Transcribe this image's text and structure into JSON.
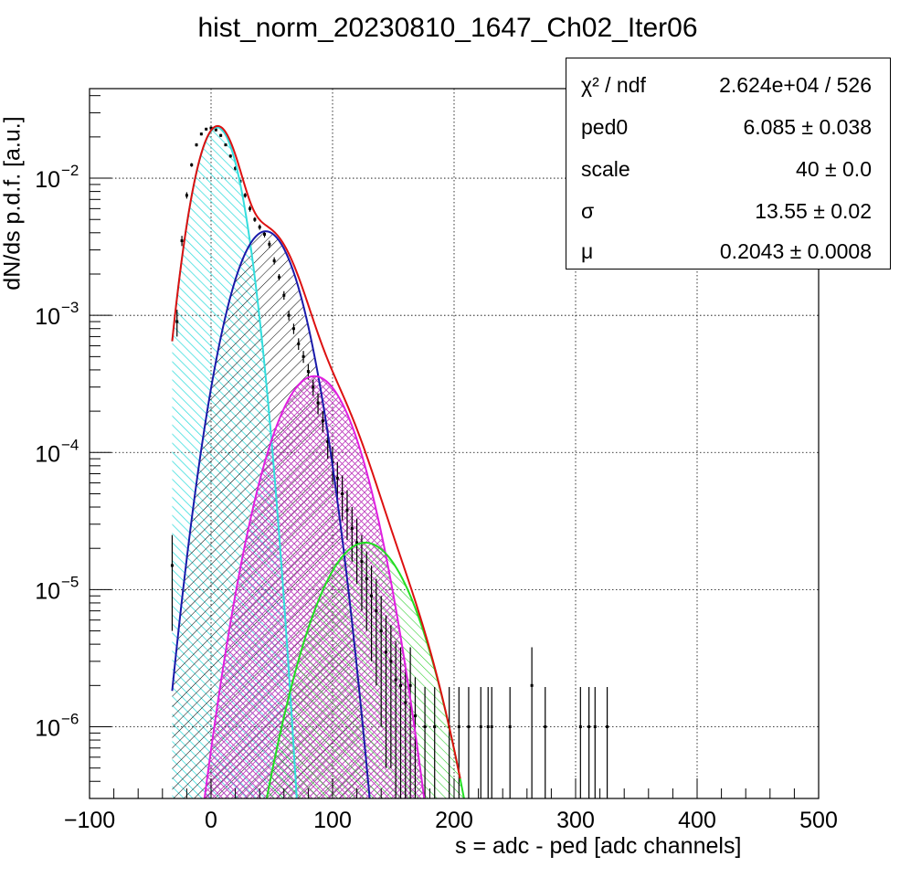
{
  "chart_data": {
    "type": "histogram_with_fit",
    "title": "hist_norm_20230810_1647_Ch02_Iter06",
    "xlabel": "s = adc - ped [adc channels]",
    "ylabel": "dN/ds p.d.f. [a.u.]",
    "xlim": [
      -100,
      500
    ],
    "ylim": [
      3e-07,
      0.045
    ],
    "yscale": "log",
    "grid": true,
    "x_ticks": [
      "−100",
      "0",
      "100",
      "200",
      "300",
      "400",
      "500"
    ],
    "x_tick_values": [
      -100,
      0,
      100,
      200,
      300,
      400,
      500
    ],
    "y_ticks": [
      {
        "value": 1e-06,
        "base": "10",
        "exp": "−6"
      },
      {
        "value": 1e-05,
        "base": "10",
        "exp": "−5"
      },
      {
        "value": 0.0001,
        "base": "10",
        "exp": "−4"
      },
      {
        "value": 0.001,
        "base": "10",
        "exp": "−3"
      },
      {
        "value": 0.01,
        "base": "10",
        "exp": "−2"
      }
    ],
    "stats": [
      {
        "name": "χ² / ndf",
        "value": "2.624e+04 / 526"
      },
      {
        "name": "ped0",
        "value": "6.085 ± 0.038"
      },
      {
        "name": "scale",
        "value": "40 ± 0.0"
      },
      {
        "name": "σ",
        "value": "13.55 ± 0.02"
      },
      {
        "name": "μ",
        "value": "0.2043 ± 0.0008"
      }
    ],
    "components": [
      {
        "peak_x": 5,
        "peak_y": 0.0235,
        "sigma": 13.8,
        "x_start": -32,
        "color": "#33dddd",
        "hatch": "hatch-cyan"
      },
      {
        "peak_x": 45,
        "peak_y": 0.0041,
        "sigma": 19.6,
        "x_start": -32,
        "color": "#1a1aaa",
        "hatch": "hatch-black"
      },
      {
        "peak_x": 85,
        "peak_y": 0.00036,
        "sigma": 24,
        "x_start": -32,
        "color": "#e020e0",
        "hatch": "hatch-magenta"
      },
      {
        "peak_x": 127,
        "peak_y": 2.2e-05,
        "sigma": 27.7,
        "x_start": -32,
        "color": "#22dd22",
        "hatch": "hatch-green"
      }
    ],
    "total_fit": {
      "color": "#dd1111",
      "x_start": -32,
      "x_end": 205
    },
    "data_points": [
      {
        "x": -32,
        "y": 1.5e-05,
        "err": 1e-05
      },
      {
        "x": -28,
        "y": 0.0009,
        "err": 0.0002
      },
      {
        "x": -24,
        "y": 0.0035,
        "err": 0.0003
      },
      {
        "x": -20,
        "y": 0.0075,
        "err": 0.0004
      },
      {
        "x": -16,
        "y": 0.0125,
        "err": 0.0004
      },
      {
        "x": -12,
        "y": 0.0175,
        "err": 0.0005
      },
      {
        "x": -8,
        "y": 0.021,
        "err": 0.0005
      },
      {
        "x": -4,
        "y": 0.0228,
        "err": 0.0005
      },
      {
        "x": 0,
        "y": 0.0232,
        "err": 0.0005
      },
      {
        "x": 4,
        "y": 0.0225,
        "err": 0.0005
      },
      {
        "x": 8,
        "y": 0.0205,
        "err": 0.0005
      },
      {
        "x": 12,
        "y": 0.0175,
        "err": 0.0004
      },
      {
        "x": 16,
        "y": 0.0145,
        "err": 0.0004
      },
      {
        "x": 20,
        "y": 0.0118,
        "err": 0.0004
      },
      {
        "x": 24,
        "y": 0.0095,
        "err": 0.0003
      },
      {
        "x": 28,
        "y": 0.0075,
        "err": 0.0003
      },
      {
        "x": 32,
        "y": 0.006,
        "err": 0.0003
      },
      {
        "x": 36,
        "y": 0.005,
        "err": 0.0002
      },
      {
        "x": 40,
        "y": 0.0044,
        "err": 0.0002
      },
      {
        "x": 44,
        "y": 0.0039,
        "err": 0.0002
      },
      {
        "x": 48,
        "y": 0.0033,
        "err": 0.0002
      },
      {
        "x": 52,
        "y": 0.0025,
        "err": 0.00015
      },
      {
        "x": 56,
        "y": 0.0019,
        "err": 0.0001
      },
      {
        "x": 60,
        "y": 0.0014,
        "err": 0.0001
      },
      {
        "x": 64,
        "y": 0.001,
        "err": 8e-05
      },
      {
        "x": 68,
        "y": 0.0008,
        "err": 7e-05
      },
      {
        "x": 72,
        "y": 0.00062,
        "err": 6e-05
      },
      {
        "x": 76,
        "y": 0.0005,
        "err": 5e-05
      },
      {
        "x": 80,
        "y": 0.00039,
        "err": 5e-05
      },
      {
        "x": 84,
        "y": 0.0003,
        "err": 4e-05
      },
      {
        "x": 88,
        "y": 0.00023,
        "err": 4e-05
      },
      {
        "x": 92,
        "y": 0.00017,
        "err": 3e-05
      },
      {
        "x": 96,
        "y": 0.00012,
        "err": 3e-05
      },
      {
        "x": 100,
        "y": 8.5e-05,
        "err": 2.5e-05
      },
      {
        "x": 104,
        "y": 6.5e-05,
        "err": 2e-05
      },
      {
        "x": 108,
        "y": 5e-05,
        "err": 1.8e-05
      },
      {
        "x": 112,
        "y": 3.8e-05,
        "err": 1.5e-05
      },
      {
        "x": 116,
        "y": 2.8e-05,
        "err": 1.2e-05
      },
      {
        "x": 120,
        "y": 2.2e-05,
        "err": 1.1e-05
      },
      {
        "x": 124,
        "y": 1.6e-05,
        "err": 9e-06
      },
      {
        "x": 128,
        "y": 1.2e-05,
        "err": 7e-06
      },
      {
        "x": 132,
        "y": 9e-06,
        "err": 6e-06
      },
      {
        "x": 136,
        "y": 7e-06,
        "err": 5e-06
      },
      {
        "x": 140,
        "y": 5e-06,
        "err": 4e-06
      },
      {
        "x": 144,
        "y": 3.5e-06,
        "err": 3e-06
      },
      {
        "x": 148,
        "y": 3e-06,
        "err": 2.5e-06
      },
      {
        "x": 152,
        "y": 2.2e-06,
        "err": 2e-06
      },
      {
        "x": 156,
        "y": 2e-06,
        "err": 1.8e-06
      },
      {
        "x": 160,
        "y": 1.5e-06,
        "err": 1.4e-06
      },
      {
        "x": 164,
        "y": 2e-06,
        "err": 1.8e-06
      },
      {
        "x": 168,
        "y": 1.2e-06,
        "err": 1.1e-06
      },
      {
        "x": 176,
        "y": 1e-06,
        "err": 9.5e-07
      },
      {
        "x": 184,
        "y": 1e-06,
        "err": 9.5e-07
      },
      {
        "x": 196,
        "y": 1e-06,
        "err": 9.5e-07
      },
      {
        "x": 204,
        "y": 1e-06,
        "err": 9.5e-07
      },
      {
        "x": 212,
        "y": 1e-06,
        "err": 9.5e-07
      },
      {
        "x": 222,
        "y": 1e-06,
        "err": 9.5e-07
      },
      {
        "x": 228,
        "y": 1e-06,
        "err": 9.5e-07
      },
      {
        "x": 231,
        "y": 1e-06,
        "err": 9.5e-07
      },
      {
        "x": 246,
        "y": 1e-06,
        "err": 9.5e-07
      },
      {
        "x": 264,
        "y": 2e-06,
        "err": 1.8e-06
      },
      {
        "x": 275,
        "y": 1e-06,
        "err": 9.5e-07
      },
      {
        "x": 304,
        "y": 1e-06,
        "err": 9.5e-07
      },
      {
        "x": 311,
        "y": 1e-06,
        "err": 9.5e-07
      },
      {
        "x": 316,
        "y": 1e-06,
        "err": 9.5e-07
      },
      {
        "x": 326,
        "y": 1e-06,
        "err": 9.5e-07
      }
    ]
  }
}
